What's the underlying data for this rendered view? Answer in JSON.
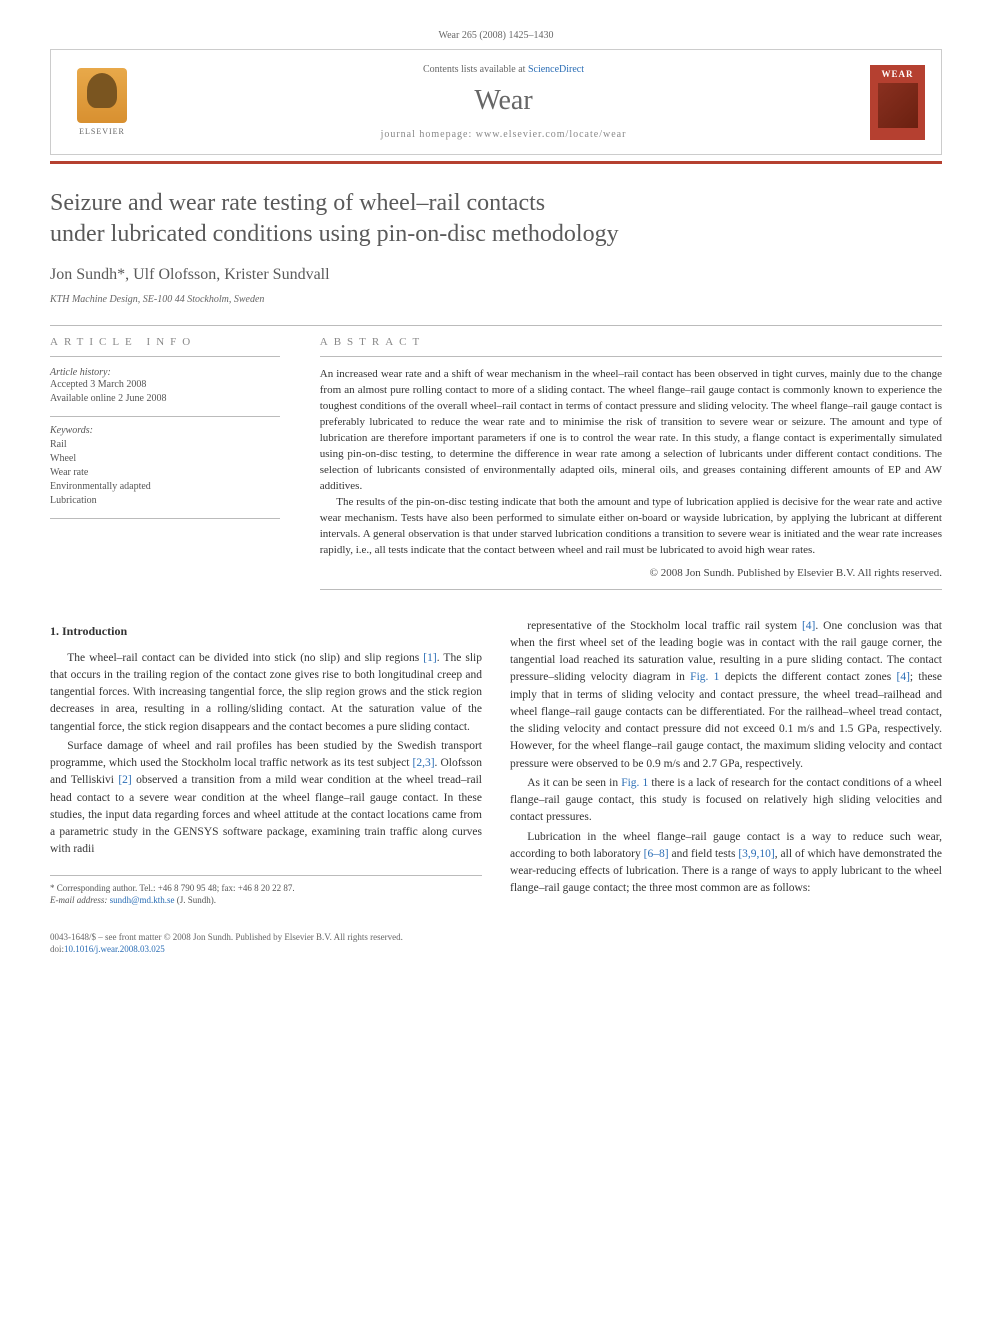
{
  "journal_ref": "Wear 265 (2008) 1425–1430",
  "header": {
    "contents_prefix": "Contents lists available at ",
    "contents_link": "ScienceDirect",
    "journal_name": "Wear",
    "homepage_prefix": "journal homepage: ",
    "homepage_url": "www.elsevier.com/locate/wear",
    "elsevier": "ELSEVIER",
    "cover_title": "WEAR"
  },
  "title_line1": "Seizure and wear rate testing of wheel–rail contacts",
  "title_line2": "under lubricated conditions using pin-on-disc methodology",
  "authors": "Jon Sundh*, Ulf Olofsson, Krister Sundvall",
  "affiliation": "KTH Machine Design, SE-100 44 Stockholm, Sweden",
  "info": {
    "label": "article info",
    "history_label": "Article history:",
    "accepted": "Accepted 3 March 2008",
    "online": "Available online 2 June 2008",
    "keywords_label": "Keywords:",
    "keywords": [
      "Rail",
      "Wheel",
      "Wear rate",
      "Environmentally adapted",
      "Lubrication"
    ]
  },
  "abstract": {
    "label": "abstract",
    "p1": "An increased wear rate and a shift of wear mechanism in the wheel–rail contact has been observed in tight curves, mainly due to the change from an almost pure rolling contact to more of a sliding contact. The wheel flange–rail gauge contact is commonly known to experience the toughest conditions of the overall wheel–rail contact in terms of contact pressure and sliding velocity. The wheel flange–rail gauge contact is preferably lubricated to reduce the wear rate and to minimise the risk of transition to severe wear or seizure. The amount and type of lubrication are therefore important parameters if one is to control the wear rate. In this study, a flange contact is experimentally simulated using pin-on-disc testing, to determine the difference in wear rate among a selection of lubricants under different contact conditions. The selection of lubricants consisted of environmentally adapted oils, mineral oils, and greases containing different amounts of EP and AW additives.",
    "p2": "The results of the pin-on-disc testing indicate that both the amount and type of lubrication applied is decisive for the wear rate and active wear mechanism. Tests have also been performed to simulate either on-board or wayside lubrication, by applying the lubricant at different intervals. A general observation is that under starved lubrication conditions a transition to severe wear is initiated and the wear rate increases rapidly, i.e., all tests indicate that the contact between wheel and rail must be lubricated to avoid high wear rates.",
    "copyright": "© 2008 Jon Sundh. Published by Elsevier B.V. All rights reserved."
  },
  "body": {
    "heading": "1. Introduction",
    "p1a": "The wheel–rail contact can be divided into stick (no slip) and slip regions ",
    "p1_ref1": "[1]",
    "p1b": ". The slip that occurs in the trailing region of the contact zone gives rise to both longitudinal creep and tangential forces. With increasing tangential force, the slip region grows and the stick region decreases in area, resulting in a rolling/sliding contact. At the saturation value of the tangential force, the stick region disappears and the contact becomes a pure sliding contact.",
    "p2a": "Surface damage of wheel and rail profiles has been studied by the Swedish transport programme, which used the Stockholm local traffic network as its test subject ",
    "p2_ref1": "[2,3]",
    "p2b": ". Olofsson and Telliskivi ",
    "p2_ref2": "[2]",
    "p2c": " observed a transition from a mild wear condition at the wheel tread–rail head contact to a severe wear condition at the wheel flange–rail gauge contact. In these studies, the input data regarding forces and wheel attitude at the contact locations came from a parametric study in the GENSYS software package, examining train traffic along curves with radii",
    "p3a": "representative of the Stockholm local traffic rail system ",
    "p3_ref1": "[4]",
    "p3b": ". One conclusion was that when the first wheel set of the leading bogie was in contact with the rail gauge corner, the tangential load reached its saturation value, resulting in a pure sliding contact. The contact pressure–sliding velocity diagram in ",
    "p3_fig1": "Fig. 1",
    "p3c": " depicts the different contact zones ",
    "p3_ref2": "[4]",
    "p3d": "; these imply that in terms of sliding velocity and contact pressure, the wheel tread–railhead and wheel flange–rail gauge contacts can be differentiated. For the railhead–wheel tread contact, the sliding velocity and contact pressure did not exceed 0.1 m/s and 1.5 GPa, respectively. However, for the wheel flange–rail gauge contact, the maximum sliding velocity and contact pressure were observed to be 0.9 m/s and 2.7 GPa, respectively.",
    "p4a": "As it can be seen in ",
    "p4_fig1": "Fig. 1",
    "p4b": " there is a lack of research for the contact conditions of a wheel flange–rail gauge contact, this study is focused on relatively high sliding velocities and contact pressures.",
    "p5a": "Lubrication in the wheel flange–rail gauge contact is a way to reduce such wear, according to both laboratory ",
    "p5_ref1": "[6–8]",
    "p5b": " and field tests ",
    "p5_ref2": "[3,9,10]",
    "p5c": ", all of which have demonstrated the wear-reducing effects of lubrication. There is a range of ways to apply lubricant to the wheel flange–rail gauge contact; the three most common are as follows:"
  },
  "footnotes": {
    "corr": "* Corresponding author. Tel.: +46 8 790 95 48; fax: +46 8 20 22 87.",
    "email_label": "E-mail address:",
    "email": "sundh@md.kth.se",
    "email_suffix": "(J. Sundh)."
  },
  "footer": {
    "issn": "0043-1648/$ – see front matter © 2008 Jon Sundh. Published by Elsevier B.V. All rights reserved.",
    "doi_label": "doi:",
    "doi": "10.1016/j.wear.2008.03.025"
  },
  "colors": {
    "accent": "#b54030",
    "link": "#2a6db5",
    "text_muted": "#666",
    "rule": "#bbb"
  }
}
